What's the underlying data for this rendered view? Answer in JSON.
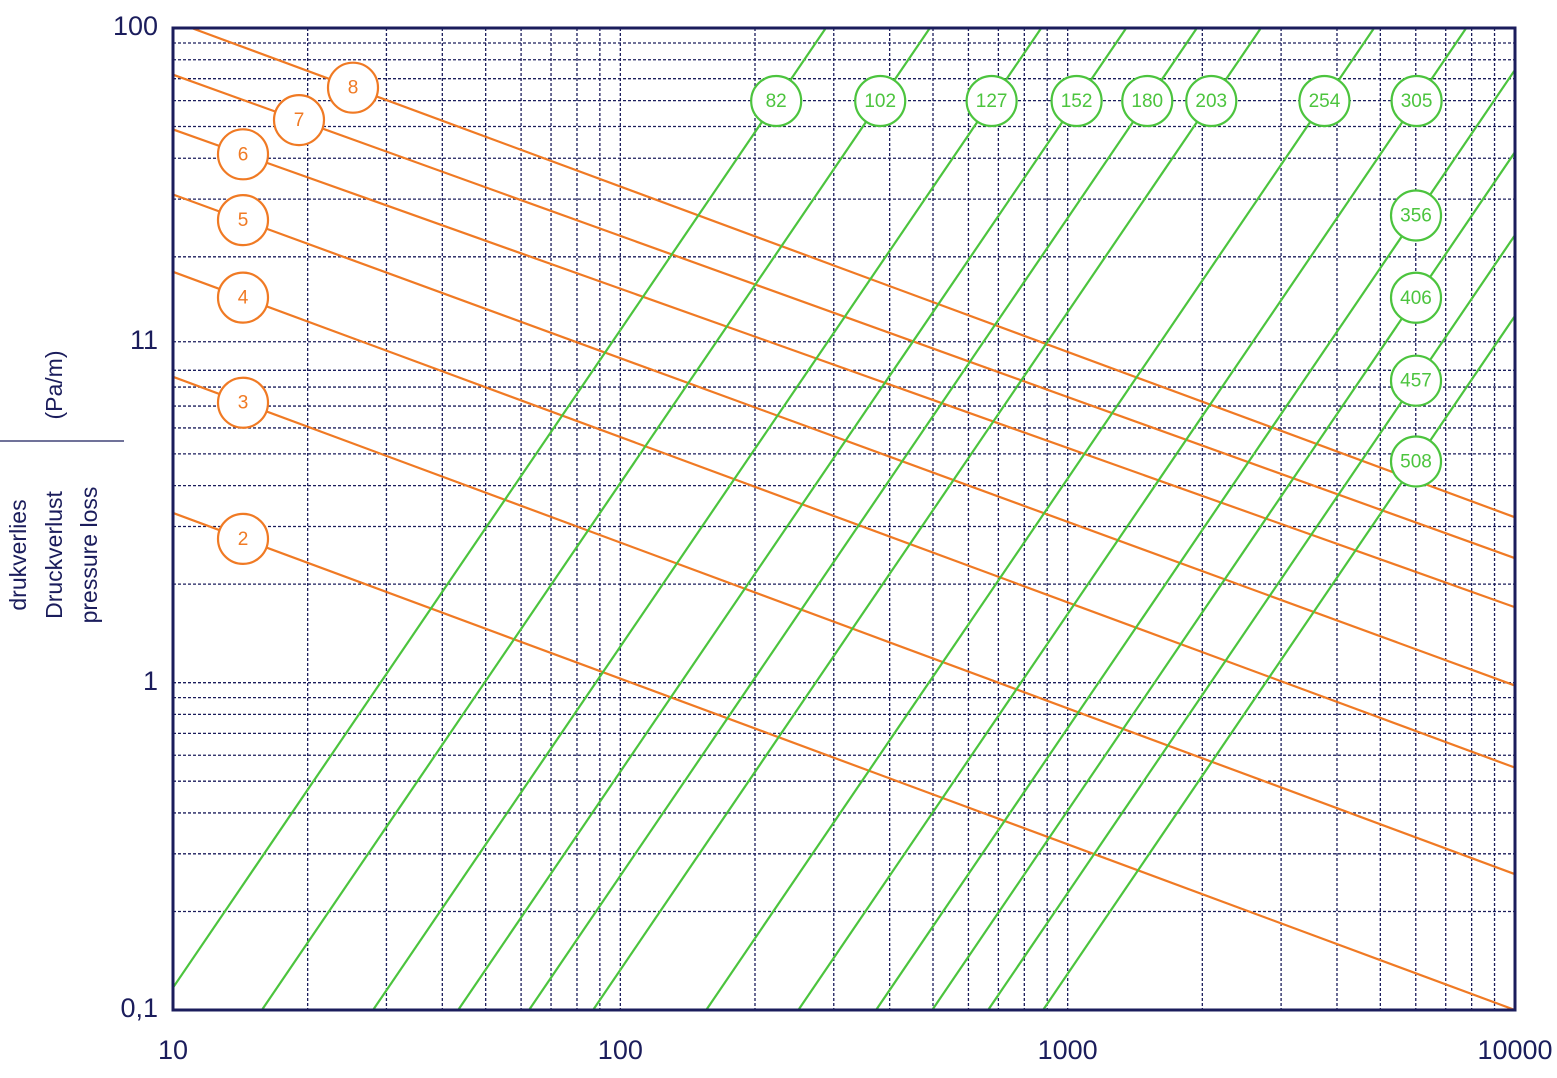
{
  "chart_data": {
    "type": "line",
    "xlog": true,
    "ylog": true,
    "xlim": [
      10,
      10000
    ],
    "ylim": [
      0.1,
      100
    ],
    "xticks": [
      10,
      100,
      1000,
      10000
    ],
    "yticks": [
      {
        "value": 0.1,
        "label": "0,1"
      },
      1,
      11,
      100
    ],
    "ylabel": [
      "drukverlies",
      "Druckverlust",
      "pressure loss"
    ],
    "yunit": "(Pa/m)",
    "grid": true,
    "axis_color": "#1b1d5c",
    "series": [
      {
        "name": "2",
        "color": "#f07a24",
        "x": [
          10,
          10000
        ],
        "values": [
          3.3,
          0.1
        ]
      },
      {
        "name": "3",
        "color": "#f07a24",
        "x": [
          10,
          10000
        ],
        "values": [
          8.6,
          0.26
        ]
      },
      {
        "name": "4",
        "color": "#f07a24",
        "x": [
          10,
          10000
        ],
        "values": [
          18,
          0.55
        ]
      },
      {
        "name": "5",
        "color": "#f07a24",
        "x": [
          10,
          10000
        ],
        "values": [
          31,
          0.98
        ]
      },
      {
        "name": "6",
        "color": "#f07a24",
        "x": [
          10,
          10000
        ],
        "values": [
          49,
          1.7
        ]
      },
      {
        "name": "7",
        "color": "#f07a24",
        "x": [
          10,
          10000
        ],
        "values": [
          72,
          2.4
        ]
      },
      {
        "name": "8",
        "color": "#f07a24",
        "x": [
          11,
          10000
        ],
        "values": [
          100,
          3.2
        ]
      },
      {
        "name": "82",
        "color": "#4cc43e",
        "x": [
          10,
          288
        ],
        "values": [
          0.117,
          100
        ]
      },
      {
        "name": "102",
        "color": "#4cc43e",
        "x": [
          15.8,
          492
        ],
        "values": [
          0.1,
          100
        ]
      },
      {
        "name": "127",
        "color": "#4cc43e",
        "x": [
          28,
          873
        ],
        "values": [
          0.1,
          100
        ]
      },
      {
        "name": "152",
        "color": "#4cc43e",
        "x": [
          43.4,
          1352
        ],
        "values": [
          0.1,
          100
        ]
      },
      {
        "name": "180",
        "color": "#4cc43e",
        "x": [
          62.5,
          1945
        ],
        "values": [
          0.1,
          100
        ]
      },
      {
        "name": "203",
        "color": "#4cc43e",
        "x": [
          86.9,
          2704
        ],
        "values": [
          0.1,
          100
        ]
      },
      {
        "name": "254",
        "color": "#4cc43e",
        "x": [
          155.6,
          4842
        ],
        "values": [
          0.1,
          100
        ]
      },
      {
        "name": "305",
        "color": "#4cc43e",
        "x": [
          250,
          7780
        ],
        "values": [
          0.1,
          100
        ]
      },
      {
        "name": "356",
        "color": "#4cc43e",
        "x": [
          373,
          10000
        ],
        "values": [
          0.1,
          74.5
        ]
      },
      {
        "name": "406",
        "color": "#4cc43e",
        "x": [
          498,
          10000
        ],
        "values": [
          0.1,
          41.8
        ]
      },
      {
        "name": "457",
        "color": "#4cc43e",
        "x": [
          664,
          10000
        ],
        "values": [
          0.1,
          23.3
        ]
      },
      {
        "name": "508",
        "color": "#4cc43e",
        "x": [
          881,
          10000
        ],
        "values": [
          0.1,
          13.2
        ]
      }
    ]
  }
}
